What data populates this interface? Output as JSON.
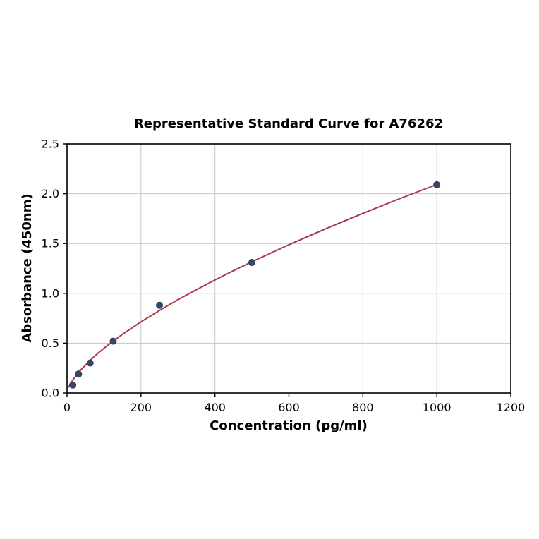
{
  "chart_data": {
    "type": "scatter",
    "title": "Representative Standard Curve for A76262",
    "xlabel": "Concentration (pg/ml)",
    "ylabel": "Absorbance (450nm)",
    "xlim": [
      0,
      1200
    ],
    "ylim": [
      0,
      2.5
    ],
    "grid": true,
    "legend": false,
    "xticks": [
      0,
      200,
      400,
      600,
      800,
      1000,
      1200
    ],
    "xtick_labels": [
      "0",
      "200",
      "400",
      "600",
      "800",
      "1000",
      "1200"
    ],
    "yticks": [
      0,
      0.5,
      1.0,
      1.5,
      2.0,
      2.5
    ],
    "ytick_labels": [
      "0.0",
      "0.5",
      "1.0",
      "1.5",
      "2.0",
      "2.5"
    ],
    "points": [
      [
        15.6,
        0.08
      ],
      [
        31.25,
        0.19
      ],
      [
        62.5,
        0.3
      ],
      [
        125,
        0.52
      ],
      [
        250,
        0.88
      ],
      [
        500,
        1.31
      ],
      [
        1000,
        2.09
      ]
    ],
    "fit_curve": [
      [
        5,
        0.06
      ],
      [
        10,
        0.096
      ],
      [
        15,
        0.126
      ],
      [
        20,
        0.153
      ],
      [
        30,
        0.2
      ],
      [
        40,
        0.243
      ],
      [
        60,
        0.319
      ],
      [
        80,
        0.387
      ],
      [
        100,
        0.449
      ],
      [
        125,
        0.521
      ],
      [
        150,
        0.589
      ],
      [
        200,
        0.714
      ],
      [
        250,
        0.828
      ],
      [
        300,
        0.936
      ],
      [
        350,
        1.037
      ],
      [
        400,
        1.134
      ],
      [
        450,
        1.227
      ],
      [
        500,
        1.317
      ],
      [
        600,
        1.488
      ],
      [
        700,
        1.649
      ],
      [
        800,
        1.803
      ],
      [
        900,
        1.951
      ],
      [
        1000,
        2.093
      ]
    ],
    "colors": {
      "point_color": "#35486b",
      "curve_color": "#a93b4e",
      "grid_color": "#c6c6c6",
      "frame_color": "#000000"
    }
  }
}
